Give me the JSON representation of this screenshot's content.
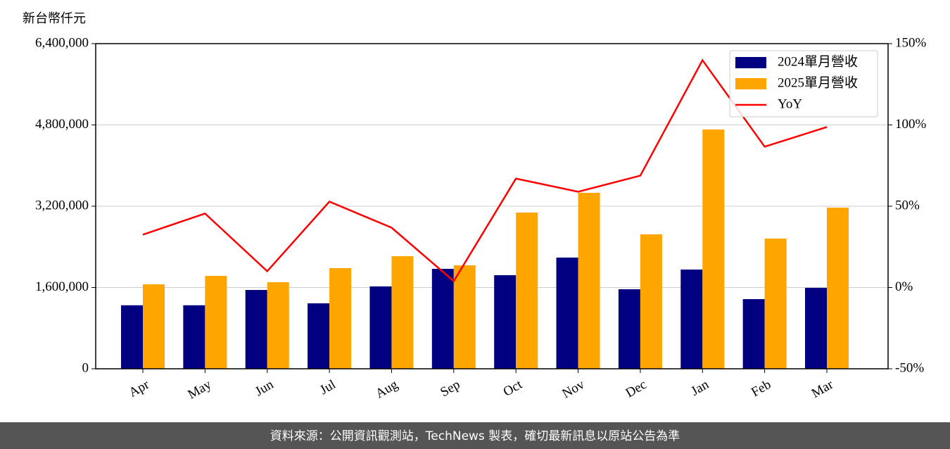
{
  "chart_data": {
    "type": "bar",
    "ylabel": "新台幣仟元",
    "categories": [
      "Apr",
      "May",
      "Jun",
      "Jul",
      "Aug",
      "Sep",
      "Oct",
      "Nov",
      "Dec",
      "Jan",
      "Feb",
      "Mar"
    ],
    "series": [
      {
        "name": "2024單月營收",
        "color": "#000080",
        "values": [
          1250000,
          1250000,
          1551000,
          1288000,
          1621000,
          1967000,
          1842000,
          2189000,
          1565000,
          1953000,
          1371000,
          1593000
        ]
      },
      {
        "name": "2025單月營收",
        "color": "#ffa500",
        "values": [
          1662000,
          1829000,
          1704000,
          1981000,
          2216000,
          2036000,
          3075000,
          3463000,
          2646000,
          4710000,
          2563000,
          3172000
        ]
      },
      {
        "name": "YoY",
        "type": "line",
        "axis": "y2",
        "color": "#ff0000",
        "values": [
          32.5,
          45.5,
          10,
          52.8,
          36.8,
          3.9,
          67,
          58.9,
          68.8,
          139.8,
          86.6,
          98.7
        ]
      }
    ],
    "ylim": [
      0,
      6400000
    ],
    "yticks": [
      0,
      {
        "value": 1600000,
        "label": "1,600,000"
      },
      {
        "value": 3200000,
        "label": "3,200,000"
      },
      {
        "value": 4800000,
        "label": "4,800,000"
      },
      {
        "value": 6400000,
        "label": "6,400,000"
      }
    ],
    "y2lim": [
      -50,
      150
    ],
    "y2ticks": [
      {
        "value": -50,
        "label": "-50%"
      },
      {
        "value": 0,
        "label": "0%"
      },
      {
        "value": 50,
        "label": "50%"
      },
      {
        "value": 100,
        "label": "100%"
      },
      {
        "value": 150,
        "label": "150%"
      }
    ],
    "grid": true,
    "legend": "upper right"
  },
  "footer": "資料來源：公開資訊觀測站，TechNews 製表，確切最新訊息以原站公告為準"
}
